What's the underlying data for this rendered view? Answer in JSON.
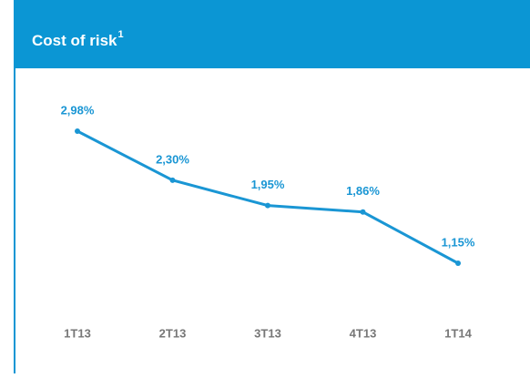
{
  "chart_data": {
    "type": "line",
    "title": "Cost of risk",
    "title_superscript": "1",
    "categories": [
      "1T13",
      "2T13",
      "3T13",
      "4T13",
      "1T14"
    ],
    "series": [
      {
        "name": "Cost of risk",
        "color": "#1a96d4",
        "values": [
          2.98,
          2.3,
          1.95,
          1.86,
          1.15
        ],
        "value_labels": [
          "2,98%",
          "2,30%",
          "1,95%",
          "1,86%",
          "1,15%"
        ]
      }
    ]
  }
}
